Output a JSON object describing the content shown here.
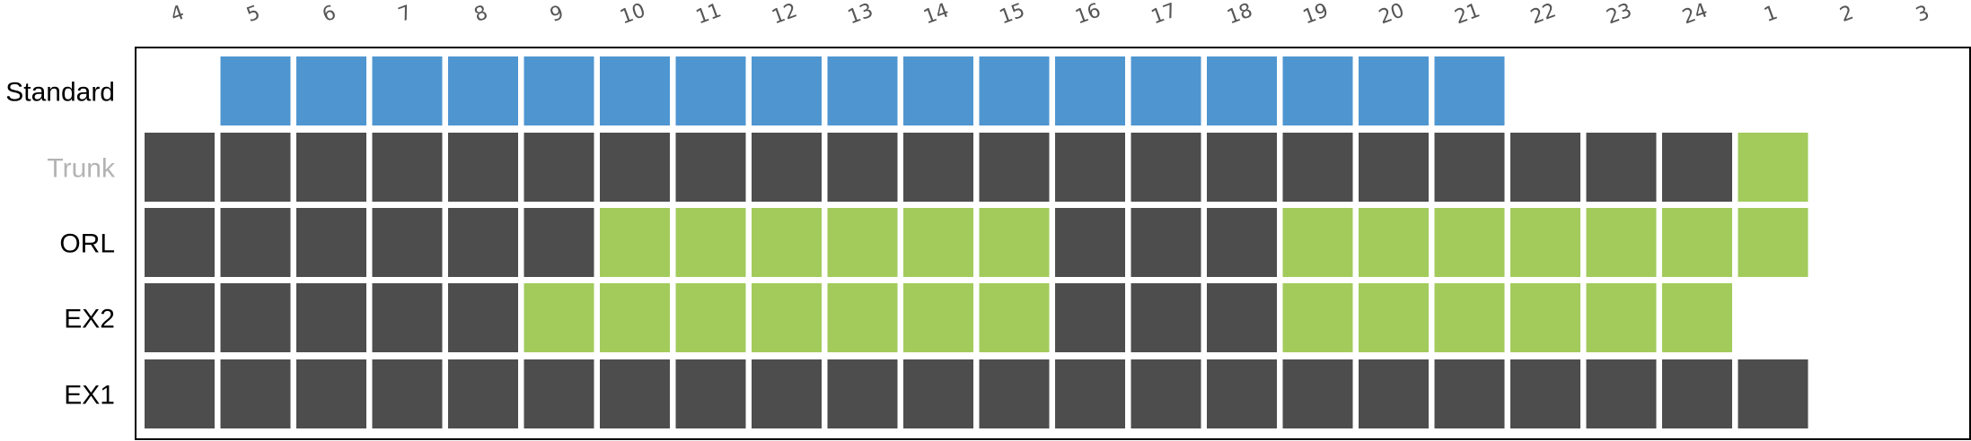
{
  "chart_data": {
    "type": "heatmap",
    "columns": [
      "4",
      "5",
      "6",
      "7",
      "8",
      "9",
      "10",
      "11",
      "12",
      "13",
      "14",
      "15",
      "16",
      "17",
      "18",
      "19",
      "20",
      "21",
      "22",
      "23",
      "24",
      "1",
      "2",
      "3"
    ],
    "rows": [
      {
        "label": "Standard",
        "label_color": "#000000",
        "cells": [
          "",
          "blue",
          "blue",
          "blue",
          "blue",
          "blue",
          "blue",
          "blue",
          "blue",
          "blue",
          "blue",
          "blue",
          "blue",
          "blue",
          "blue",
          "blue",
          "blue",
          "blue",
          "",
          "",
          "",
          "",
          "",
          ""
        ]
      },
      {
        "label": "Trunk",
        "label_color": "#b3b3b3",
        "cells": [
          "dark",
          "dark",
          "dark",
          "dark",
          "dark",
          "dark",
          "dark",
          "dark",
          "dark",
          "dark",
          "dark",
          "dark",
          "dark",
          "dark",
          "dark",
          "dark",
          "dark",
          "dark",
          "dark",
          "dark",
          "dark",
          "green",
          "",
          ""
        ]
      },
      {
        "label": "ORL",
        "label_color": "#000000",
        "cells": [
          "dark",
          "dark",
          "dark",
          "dark",
          "dark",
          "dark",
          "green",
          "green",
          "green",
          "green",
          "green",
          "green",
          "dark",
          "dark",
          "dark",
          "green",
          "green",
          "green",
          "green",
          "green",
          "green",
          "green",
          "",
          ""
        ]
      },
      {
        "label": "EX2",
        "label_color": "#000000",
        "cells": [
          "dark",
          "dark",
          "dark",
          "dark",
          "dark",
          "green",
          "green",
          "green",
          "green",
          "green",
          "green",
          "green",
          "dark",
          "dark",
          "dark",
          "green",
          "green",
          "green",
          "green",
          "green",
          "green",
          "",
          "",
          ""
        ]
      },
      {
        "label": "EX1",
        "label_color": "#000000",
        "cells": [
          "dark",
          "dark",
          "dark",
          "dark",
          "dark",
          "dark",
          "dark",
          "dark",
          "dark",
          "dark",
          "dark",
          "dark",
          "dark",
          "dark",
          "dark",
          "dark",
          "dark",
          "dark",
          "dark",
          "dark",
          "dark",
          "dark",
          "",
          ""
        ]
      }
    ],
    "colors": {
      "blue": "#4f96d1",
      "dark": "#4d4d4d",
      "green": "#a2cb5c"
    },
    "frame_color": "#000000"
  }
}
